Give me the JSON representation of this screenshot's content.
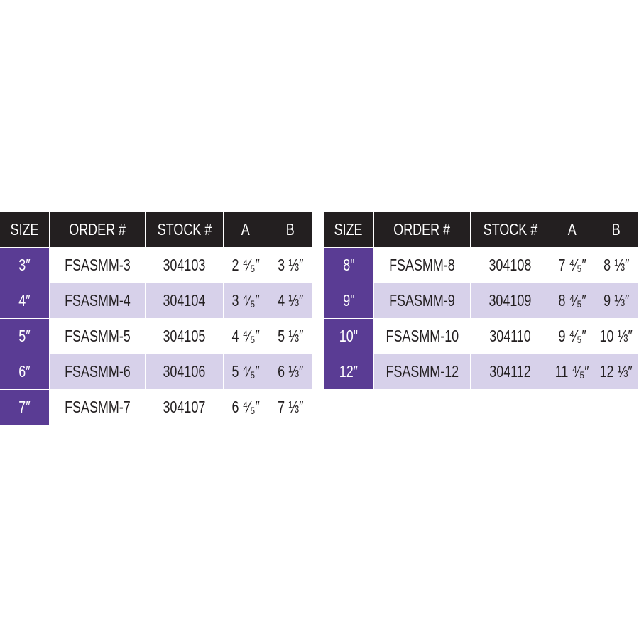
{
  "colors": {
    "header_bg": "#231f20",
    "size_bg": "#5a3c94",
    "alt_row_bg": "#d7d1ea"
  },
  "headers": [
    "SIZE",
    "ORDER #",
    "STOCK #",
    "A",
    "B"
  ],
  "tables": [
    {
      "rows": [
        [
          "3″",
          "FSASMM-3",
          "304103",
          "2 ⁴⁄₅″",
          "3 ⅓″"
        ],
        [
          "4″",
          "FSASMM-4",
          "304104",
          "3 ⁴⁄₅″",
          "4 ⅓″"
        ],
        [
          "5″",
          "FSASMM-5",
          "304105",
          "4 ⁴⁄₅″",
          "5 ⅓″"
        ],
        [
          "6″",
          "FSASMM-6",
          "304106",
          "5 ⁴⁄₅″",
          "6 ⅓″"
        ],
        [
          "7″",
          "FSASMM-7",
          "304107",
          "6 ⁴⁄₅″",
          "7 ⅓″"
        ]
      ]
    },
    {
      "rows": [
        [
          "8\"",
          "FSASMM-8",
          "304108",
          "7 ⁴⁄₅″",
          "8 ⅓″"
        ],
        [
          "9\"",
          "FSASMM-9",
          "304109",
          "8 ⁴⁄₅″",
          "9 ⅓″"
        ],
        [
          "10\"",
          "FSASMM-10",
          "304110",
          "9 ⁴⁄₅″",
          "10 ⅓″"
        ],
        [
          "12″",
          "FSASMM-12",
          "304112",
          "11 ⁴⁄₅″",
          "12 ⅓″"
        ]
      ]
    }
  ]
}
